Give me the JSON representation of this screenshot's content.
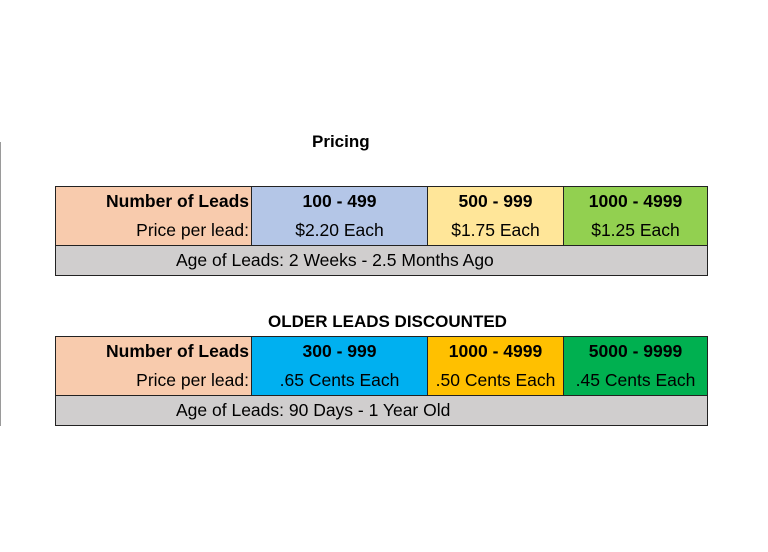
{
  "colors": {
    "header_cell": "#f8cbad",
    "age_row": "#d0cece",
    "t1_col1": "#b4c6e7",
    "t1_col2": "#ffe699",
    "t1_col3": "#92d050",
    "t2_col1": "#00b0f0",
    "t2_col2": "#ffc000",
    "t2_col3": "#00b050"
  },
  "pricing": {
    "title": "Pricing",
    "row_label_leads": "Number of Leads",
    "row_label_price": "Price per lead:",
    "tiers": [
      {
        "range": "100 - 499",
        "price": "$2.20 Each"
      },
      {
        "range": "500 - 999",
        "price": "$1.75 Each"
      },
      {
        "range": "1000 - 4999",
        "price": "$1.25 Each"
      }
    ],
    "age": "Age of Leads: 2 Weeks - 2.5 Months Ago"
  },
  "older": {
    "title": "OLDER LEADS DISCOUNTED",
    "row_label_leads": "Number of Leads",
    "row_label_price": "Price per lead:",
    "tiers": [
      {
        "range": "300 - 999",
        "price": ".65 Cents Each"
      },
      {
        "range": "1000 - 4999",
        "price": ".50 Cents Each"
      },
      {
        "range": "5000 - 9999",
        "price": ".45 Cents Each"
      }
    ],
    "age": "Age of Leads: 90 Days - 1 Year Old"
  }
}
